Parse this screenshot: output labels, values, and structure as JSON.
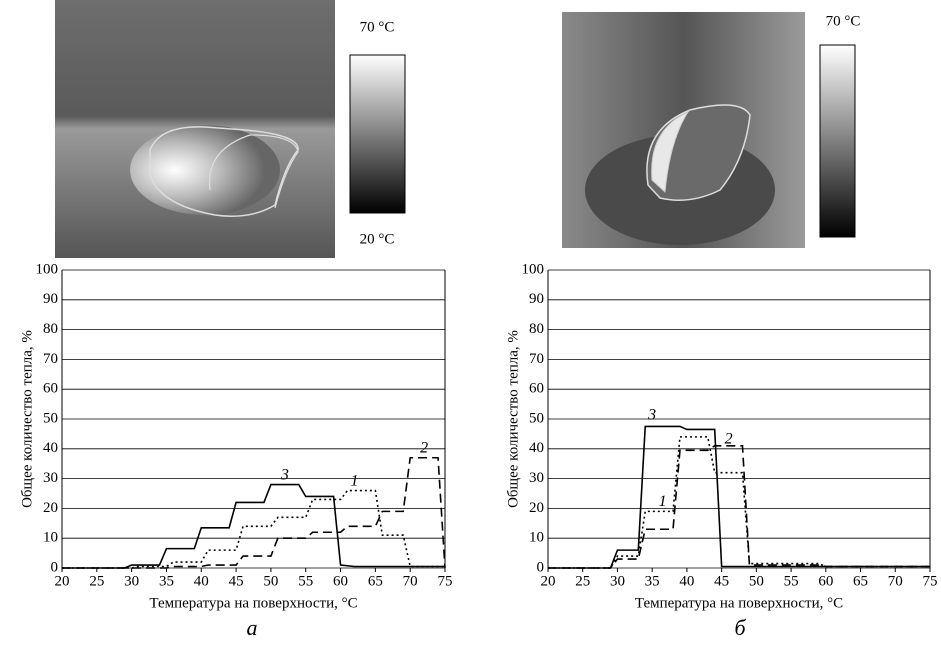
{
  "chart_data": [
    {
      "type": "line",
      "caption": "а",
      "xlabel": "Температура на поверхности, °С",
      "ylabel": "Общее количество тепла, %",
      "xlim": [
        20,
        75
      ],
      "xticks": [
        20,
        25,
        30,
        35,
        40,
        45,
        50,
        55,
        60,
        65,
        70,
        75
      ],
      "ylim": [
        0,
        100
      ],
      "yticks": [
        0,
        10,
        20,
        30,
        40,
        50,
        60,
        70,
        80,
        90,
        100
      ],
      "grid": true,
      "series": [
        {
          "name": "1",
          "color": "#000",
          "style": "dotted",
          "x": [
            20,
            30,
            31,
            35,
            36,
            40,
            41,
            45,
            46,
            50,
            51,
            55,
            56,
            60,
            61,
            65,
            66,
            69,
            70,
            75
          ],
          "values": [
            0,
            0,
            0.5,
            0.5,
            2,
            2,
            6,
            6,
            14,
            14,
            17,
            17,
            23,
            23,
            26,
            26,
            11,
            11,
            0.5,
            0.5
          ]
        },
        {
          "name": "2",
          "color": "#000",
          "style": "dashed",
          "x": [
            20,
            35,
            36,
            40,
            41,
            45,
            46,
            50,
            51,
            55,
            56,
            60,
            61,
            65,
            66,
            69,
            70,
            74,
            75
          ],
          "values": [
            0,
            0,
            0.5,
            0.5,
            1,
            1,
            4,
            4,
            10,
            10,
            12,
            12,
            14,
            14,
            19,
            19,
            37,
            37,
            0
          ]
        },
        {
          "name": "3",
          "color": "#000",
          "style": "solid",
          "x": [
            20,
            29,
            30,
            34,
            35,
            39,
            40,
            44,
            45,
            49,
            50,
            54,
            55,
            59,
            60,
            62,
            75
          ],
          "values": [
            0,
            0,
            1,
            1,
            6.5,
            6.5,
            13.5,
            13.5,
            22,
            22,
            28,
            28,
            24,
            24,
            1,
            0.5,
            0.5
          ]
        }
      ]
    },
    {
      "type": "line",
      "caption": "б",
      "xlabel": "Температура на поверхности, °С",
      "ylabel": "Общее количество тепла, %",
      "xlim": [
        20,
        75
      ],
      "xticks": [
        20,
        25,
        30,
        35,
        40,
        45,
        50,
        55,
        60,
        65,
        70,
        75
      ],
      "ylim": [
        0,
        100
      ],
      "yticks": [
        0,
        10,
        20,
        30,
        40,
        50,
        60,
        70,
        80,
        90,
        100
      ],
      "grid": true,
      "series": [
        {
          "name": "1",
          "color": "#000",
          "style": "dotted",
          "x": [
            20,
            29,
            30,
            33,
            34,
            38,
            39,
            43,
            44,
            48,
            49,
            59,
            60,
            75
          ],
          "values": [
            0,
            0,
            4,
            4,
            19,
            19,
            44,
            44,
            32,
            32,
            1.5,
            1.5,
            0.5,
            0.5
          ]
        },
        {
          "name": "2",
          "color": "#000",
          "style": "dashed",
          "x": [
            20,
            29,
            30,
            33,
            34,
            38,
            39,
            43,
            44,
            48,
            49,
            59,
            60,
            75
          ],
          "values": [
            0,
            0,
            3,
            3,
            13,
            13,
            39.5,
            39.5,
            41,
            41,
            1,
            1,
            0.5,
            0.5
          ]
        },
        {
          "name": "3",
          "color": "#000",
          "style": "solid",
          "x": [
            20,
            29,
            30,
            33,
            34,
            39,
            40,
            44,
            45,
            75
          ],
          "values": [
            0,
            0,
            6,
            6,
            47.5,
            47.5,
            46.5,
            46.5,
            0.5,
            0.5
          ]
        }
      ]
    }
  ],
  "images": [
    {
      "scale_max": "70 °C",
      "scale_min": "20 °C"
    },
    {
      "scale_max": "70 °C"
    }
  ]
}
